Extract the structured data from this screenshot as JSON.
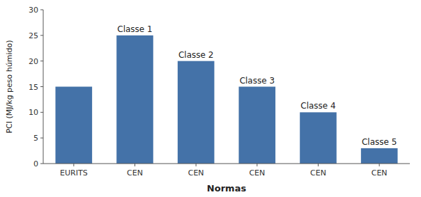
{
  "chart_data": {
    "type": "bar",
    "categories": [
      "EURITS",
      "CEN",
      "CEN",
      "CEN",
      "CEN",
      "CEN"
    ],
    "values": [
      15,
      25,
      20,
      15,
      10,
      3
    ],
    "annotations": [
      null,
      "Classe 1",
      "Classe 2",
      "Classe 3",
      "Classe 4",
      "Classe 5"
    ],
    "color": "#4472a8",
    "xlabel": "Normas",
    "ylabel": "PCI (MJ/kg peso húmido)",
    "ylim": [
      0,
      30
    ],
    "yticks": [
      0,
      5,
      10,
      15,
      20,
      25,
      30
    ],
    "grid": false
  }
}
